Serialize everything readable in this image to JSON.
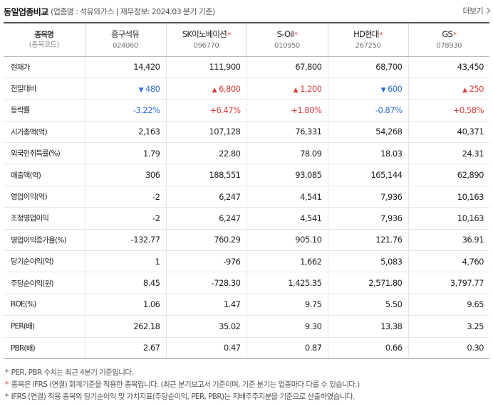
{
  "header": {
    "title": "동일업종비교",
    "meta": "(업종명 : 석유와가스 | 재무정보: 2024.03 분기 기준)",
    "more_label": "더보기"
  },
  "label_col": {
    "name": "종목명",
    "code": "(종목코드)"
  },
  "stocks": [
    {
      "name": "흥구석유",
      "code": "024060",
      "star": ""
    },
    {
      "name": "SK이노베이션",
      "code": "096770",
      "star": "*"
    },
    {
      "name": "S-Oil",
      "code": "010950",
      "star": "*"
    },
    {
      "name": "HD현대",
      "code": "267250",
      "star": "*"
    },
    {
      "name": "GS",
      "code": "078930",
      "star": "*"
    }
  ],
  "rows": [
    {
      "label": "현재가",
      "values": [
        "14,420",
        "111,900",
        "67,800",
        "68,700",
        "43,450"
      ]
    },
    {
      "label": "전일대비",
      "values": [
        "480",
        "6,800",
        "1,200",
        "600",
        "250"
      ],
      "dirs": [
        "down",
        "up",
        "up",
        "down",
        "up"
      ]
    },
    {
      "label": "등락률",
      "values": [
        "-3.22%",
        "+6.47%",
        "+1.80%",
        "-0.87%",
        "+0.58%"
      ],
      "dirs": [
        "down",
        "up",
        "up",
        "down",
        "up"
      ]
    },
    {
      "label": "시가총액(억)",
      "values": [
        "2,163",
        "107,128",
        "76,331",
        "54,268",
        "40,371"
      ]
    },
    {
      "label": "외국인취득률(%)",
      "values": [
        "1.79",
        "22.80",
        "78.09",
        "18.03",
        "24.31"
      ]
    },
    {
      "label": "매출액(억)",
      "values": [
        "306",
        "188,551",
        "93,085",
        "165,144",
        "62,890"
      ]
    },
    {
      "label": "영업이익(억)",
      "values": [
        "-2",
        "6,247",
        "4,541",
        "7,936",
        "10,163"
      ]
    },
    {
      "label": "조정영업이익",
      "values": [
        "-2",
        "6,247",
        "4,541",
        "7,936",
        "10,163"
      ]
    },
    {
      "label": "영업이익증가율(%)",
      "values": [
        "-132.77",
        "760.29",
        "905.10",
        "121.76",
        "36.91"
      ]
    },
    {
      "label": "당기순이익(억)",
      "values": [
        "1",
        "-976",
        "1,662",
        "5,083",
        "4,760"
      ]
    },
    {
      "label": "주당순이익(원)",
      "values": [
        "8.45",
        "-728.30",
        "1,425.35",
        "2,571.80",
        "3,797.77"
      ]
    },
    {
      "label": "ROE(%)",
      "values": [
        "1.06",
        "1.47",
        "9.75",
        "5.50",
        "9.65"
      ]
    },
    {
      "label": "PER(배)",
      "values": [
        "262.18",
        "35.02",
        "9.30",
        "13.38",
        "3.25"
      ]
    },
    {
      "label": "PBR(배)",
      "values": [
        "2.67",
        "0.47",
        "0.87",
        "0.66",
        "0.30"
      ]
    }
  ],
  "notes": [
    {
      "mark": "*",
      "red": false,
      "text": "PER, PBR 수치는 최근 4분기 기준입니다."
    },
    {
      "mark": "*",
      "red": true,
      "text": "종목은 IFRS (연결) 회계기준을 적용한 종목입니다. (최근 분기보고서 기준이며, 기준 분기는 업종마다 다를 수 있습니다.)"
    },
    {
      "mark": "*",
      "red": false,
      "text": "IFRS (연결) 적용 종목의 당기순이익 및 가치지표(주당순이익, PER, PBR)는 지배주주지분을 기준으로 산출하였습니다."
    }
  ],
  "colors": {
    "up": "#d83b3b",
    "down": "#2f6fd0",
    "star": "#d83b3b"
  },
  "icons": {
    "up_arrow": "up-triangle-icon",
    "down_arrow": "down-triangle-icon",
    "more": "chevron-right-icon"
  }
}
